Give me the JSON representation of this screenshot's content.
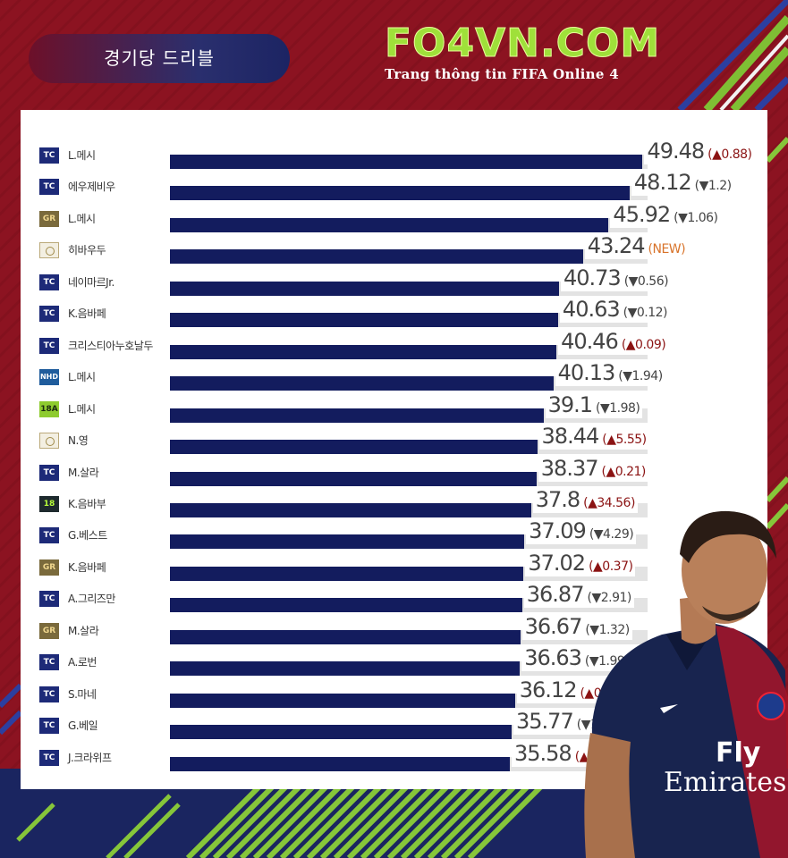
{
  "header": {
    "title": "경기당 드리블",
    "brand": "FO4VN.COM",
    "brand_subtitle": "Trang thông tin FIFA Online 4"
  },
  "colors": {
    "bar": "#131c5e",
    "track": "#e3e3e3",
    "up": "#8b1313",
    "down": "#444444",
    "new": "#d8732a"
  },
  "chart_data": {
    "type": "bar",
    "orientation": "horizontal",
    "xlim": [
      0,
      50
    ],
    "categories": [
      "L.메시",
      "에우제비우",
      "L.메시",
      "히바우두",
      "네이마르Jr.",
      "K.음바페",
      "크리스티아누호날두",
      "L.메시",
      "L.메시",
      "N.영",
      "M.살라",
      "K.음바부",
      "G.베스트",
      "K.음바페",
      "A.그리즈만",
      "M.살라",
      "A.로번",
      "S.마네",
      "G.베일",
      "J.크라위프"
    ],
    "badges": [
      "TC",
      "TC",
      "GR",
      "ICON",
      "TC",
      "TC",
      "TC",
      "NHD",
      "18A",
      "ICON",
      "TC",
      "18",
      "TC",
      "GR",
      "TC",
      "GR",
      "TC",
      "TC",
      "TC",
      "TC"
    ],
    "values": [
      49.48,
      48.12,
      45.92,
      43.24,
      40.73,
      40.63,
      40.46,
      40.13,
      39.1,
      38.44,
      38.37,
      37.8,
      37.09,
      37.02,
      36.87,
      36.67,
      36.63,
      36.12,
      35.77,
      35.58
    ],
    "value_labels": [
      "49.48",
      "48.12",
      "45.92",
      "43.24",
      "40.73",
      "40.63",
      "40.46",
      "40.13",
      "39.1",
      "38.44",
      "38.37",
      "37.8",
      "37.09",
      "37.02",
      "36.87",
      "36.67",
      "36.63",
      "36.12",
      "35.77",
      "35.58"
    ],
    "changes": [
      "(▲0.88)",
      "(▼1.2)",
      "(▼1.06)",
      "(NEW)",
      "(▼0.56)",
      "(▼0.12)",
      "(▲0.09)",
      "(▼1.94)",
      "(▼1.98)",
      "(▲5.55)",
      "(▲0.21)",
      "(▲34.56)",
      "(▼4.29)",
      "(▲0.37)",
      "(▼2.91)",
      "(▼1.32)",
      "(▼1.99)",
      "(▲0.76)",
      "(▼1.35)",
      "(▲1.37)"
    ],
    "change_types": [
      "up",
      "down",
      "down",
      "new",
      "down",
      "down",
      "up",
      "down",
      "down",
      "up",
      "up",
      "up",
      "down",
      "up",
      "down",
      "down",
      "down",
      "up",
      "down",
      "up"
    ]
  }
}
